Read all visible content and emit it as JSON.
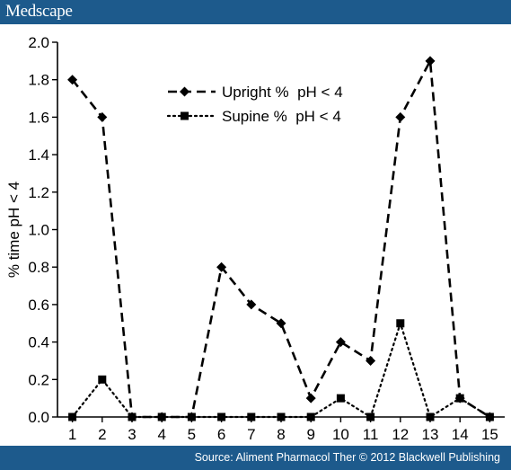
{
  "header": {
    "brand": "Medscape"
  },
  "footer": {
    "source": "Source: Aliment Pharmacol Ther © 2012 Blackwell Publishing"
  },
  "chart_data": {
    "type": "line",
    "title": "",
    "xlabel": "",
    "ylabel": "% time pH < 4",
    "x": [
      1,
      2,
      3,
      4,
      5,
      6,
      7,
      8,
      9,
      10,
      11,
      12,
      13,
      14,
      15
    ],
    "ylim": [
      0,
      2.0
    ],
    "yticks": [
      0.0,
      0.2,
      0.4,
      0.6,
      0.8,
      1.0,
      1.2,
      1.4,
      1.6,
      1.8,
      2.0
    ],
    "ytick_labels": [
      "0.0",
      "0.2",
      "0.4",
      "0.6",
      "0.8",
      "1.0",
      "1.2",
      "1.4",
      "1.6",
      "1.8",
      "2.0"
    ],
    "grid": false,
    "legend": "top-center",
    "series": [
      {
        "name": "Upright %  pH < 4",
        "marker": "diamond",
        "dash": "dashed",
        "values": [
          1.8,
          1.6,
          0.0,
          0.0,
          0.0,
          0.8,
          0.6,
          0.5,
          0.1,
          0.4,
          0.3,
          1.6,
          1.9,
          0.1,
          0.0
        ]
      },
      {
        "name": "Supine %  pH < 4",
        "marker": "square",
        "dash": "dotted",
        "values": [
          0.0,
          0.2,
          0.0,
          0.0,
          0.0,
          0.0,
          0.0,
          0.0,
          0.0,
          0.1,
          0.0,
          0.5,
          0.0,
          0.1,
          0.0
        ]
      }
    ]
  }
}
